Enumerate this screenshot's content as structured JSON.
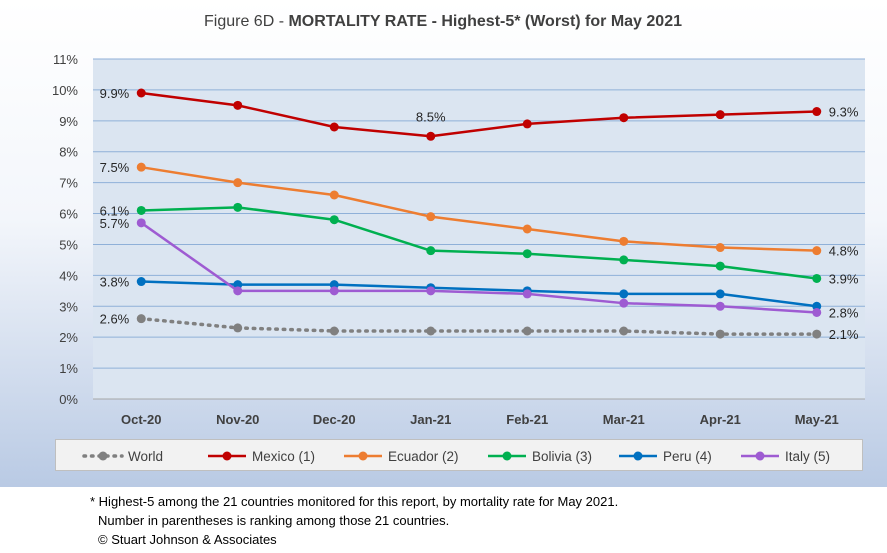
{
  "chart_data": {
    "type": "line",
    "title_prefix": "Figure 6D  - ",
    "title_bold": "MORTALITY RATE - Highest-5* (Worst) for May 2021",
    "categories": [
      "Oct-20",
      "Nov-20",
      "Dec-20",
      "Jan-21",
      "Feb-21",
      "Mar-21",
      "Apr-21",
      "May-21"
    ],
    "ylim": [
      0,
      11
    ],
    "yticks": [
      "0%",
      "1%",
      "2%",
      "3%",
      "4%",
      "5%",
      "6%",
      "7%",
      "8%",
      "9%",
      "10%",
      "11%"
    ],
    "grid": true,
    "legend_position": "bottom",
    "series": [
      {
        "name": "World",
        "color": "#808080",
        "dashed": true,
        "values": [
          2.6,
          2.3,
          2.2,
          2.2,
          2.2,
          2.2,
          2.1,
          2.1
        ]
      },
      {
        "name": "Mexico (1)",
        "color": "#c00000",
        "dashed": false,
        "values": [
          9.9,
          9.5,
          8.8,
          8.5,
          8.9,
          9.1,
          9.2,
          9.3
        ]
      },
      {
        "name": "Ecuador (2)",
        "color": "#ed7d31",
        "dashed": false,
        "values": [
          7.5,
          7.0,
          6.6,
          5.9,
          5.5,
          5.1,
          4.9,
          4.8
        ]
      },
      {
        "name": "Bolivia (3)",
        "color": "#00b050",
        "dashed": false,
        "values": [
          6.1,
          6.2,
          5.8,
          4.8,
          4.7,
          4.5,
          4.3,
          3.9
        ]
      },
      {
        "name": "Peru (4)",
        "color": "#0070c0",
        "dashed": false,
        "values": [
          3.8,
          3.7,
          3.7,
          3.6,
          3.5,
          3.4,
          3.4,
          3.0
        ]
      },
      {
        "name": "Italy (5)",
        "color": "#9e5bd2",
        "dashed": false,
        "values": [
          5.7,
          3.5,
          3.5,
          3.5,
          3.4,
          3.1,
          3.0,
          2.8
        ]
      }
    ],
    "annotations": [
      {
        "text": "9.9%",
        "series": 1,
        "index": 0
      },
      {
        "text": "8.5%",
        "series": 1,
        "index": 3
      },
      {
        "text": "9.3%",
        "series": 1,
        "index": 7
      },
      {
        "text": "7.5%",
        "series": 2,
        "index": 0
      },
      {
        "text": "4.8%",
        "series": 2,
        "index": 7
      },
      {
        "text": "6.1%",
        "series": 3,
        "index": 0
      },
      {
        "text": "3.9%",
        "series": 3,
        "index": 7
      },
      {
        "text": "3.8%",
        "series": 4,
        "index": 0
      },
      {
        "text": "5.7%",
        "series": 5,
        "index": 0
      },
      {
        "text": "2.8%",
        "series": 5,
        "index": 7
      },
      {
        "text": "2.6%",
        "series": 0,
        "index": 0
      },
      {
        "text": "2.1%",
        "series": 0,
        "index": 7
      }
    ]
  },
  "footnote": {
    "line1": "* Highest-5 among the 21 countries monitored for this report, by mortality rate for May 2021.",
    "line2": "Number in parentheses is ranking among those 21 countries.",
    "line3": "© Stuart Johnson & Associates"
  }
}
